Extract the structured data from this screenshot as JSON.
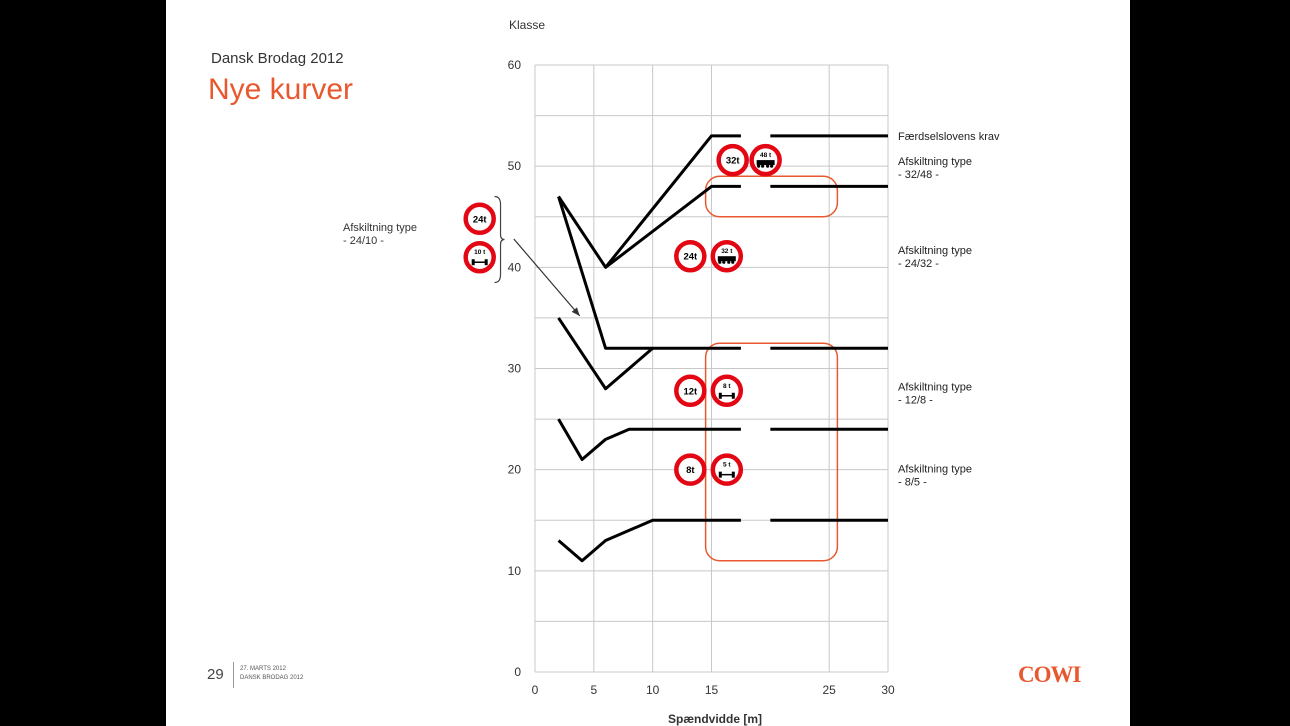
{
  "slide": {
    "subtitle": "Dansk Brodag 2012",
    "title": "Nye kurver",
    "left_label": "Afskiltning type\n- 24/10 -",
    "page_number": "29",
    "footer_date": "27. MARTS 2012\nDANSK BRODAG 2012",
    "logo": "COWI",
    "colors": {
      "accent": "#e8582f",
      "sign_red": "#e30613",
      "curve": "#000000",
      "grid": "#c8c8c8"
    }
  },
  "chart_data": {
    "type": "line",
    "title": "",
    "ylabel": "Klasse",
    "xlabel": "Spændvidde [m]",
    "x_ticks": [
      "0",
      "5",
      "10",
      "15",
      "25",
      "30"
    ],
    "y_ticks": [
      "0",
      "10",
      "20",
      "30",
      "40",
      "50",
      "60"
    ],
    "xlim": [
      0,
      30
    ],
    "ylim": [
      0,
      60
    ],
    "grid": true,
    "series": [
      {
        "x": [
          2,
          6,
          15,
          17.5
        ],
        "y": [
          47,
          40,
          53,
          53
        ],
        "right_level": 53
      },
      {
        "x": [
          6,
          15,
          17.5
        ],
        "y": [
          40,
          48,
          48
        ],
        "right_level": 48
      },
      {
        "x": [
          2,
          6,
          17.5
        ],
        "y": [
          47,
          32,
          32
        ],
        "right_level": 32
      },
      {
        "x": [
          2,
          6,
          10
        ],
        "y": [
          35,
          28,
          32
        ],
        "right_level": null
      },
      {
        "x": [
          2,
          4,
          6,
          8,
          17.5
        ],
        "y": [
          25,
          21,
          23,
          24,
          24
        ],
        "right_level": 24
      },
      {
        "x": [
          2,
          4,
          6,
          10,
          17.5
        ],
        "y": [
          13,
          11,
          13,
          15,
          15
        ],
        "right_level": 15
      }
    ],
    "right_segment_x": [
      20,
      30
    ],
    "annotations": [
      {
        "text": "Færdselslovens krav",
        "y": 53
      },
      {
        "text": "Afskiltning type\n- 32/48 -",
        "y": 50.5
      },
      {
        "text": "Afskiltning type\n- 24/32 -",
        "y": 41.7
      },
      {
        "text": "Afskiltning type\n- 12/8 -",
        "y": 28.2
      },
      {
        "text": "Afskiltning type\n- 8/5 -",
        "y": 20.1
      }
    ],
    "signs": [
      {
        "label": "32t",
        "kind": "single",
        "x": 16.8,
        "y": 50.6
      },
      {
        "label": "48 t",
        "kind": "truck",
        "x": 19.6,
        "y": 50.6
      },
      {
        "label": "24t",
        "kind": "single",
        "x": 13.2,
        "y": 41.1
      },
      {
        "label": "32 t",
        "kind": "truck",
        "x": 16.3,
        "y": 41.1
      },
      {
        "label": "12t",
        "kind": "single",
        "x": 13.2,
        "y": 27.8
      },
      {
        "label": "8 t",
        "kind": "axle",
        "x": 16.3,
        "y": 27.8
      },
      {
        "label": "8t",
        "kind": "single",
        "x": 13.2,
        "y": 20.0
      },
      {
        "label": "5 t",
        "kind": "axle",
        "x": 16.3,
        "y": 20.0
      },
      {
        "label": "24t",
        "kind": "single",
        "x": -4.7,
        "y": 44.8
      },
      {
        "label": "10 t",
        "kind": "axle",
        "x": -4.7,
        "y": 41.0
      }
    ],
    "highlight_boxes": [
      {
        "x": [
          14.5,
          25.7
        ],
        "y": [
          45,
          49
        ]
      },
      {
        "x": [
          14.5,
          25.7
        ],
        "y": [
          11,
          32.5
        ]
      }
    ],
    "arrow": {
      "from": [
        -1.8,
        42.8
      ],
      "to": [
        3.8,
        35.2
      ]
    },
    "brace": {
      "x": -3.1,
      "y": [
        38.5,
        47
      ]
    }
  }
}
